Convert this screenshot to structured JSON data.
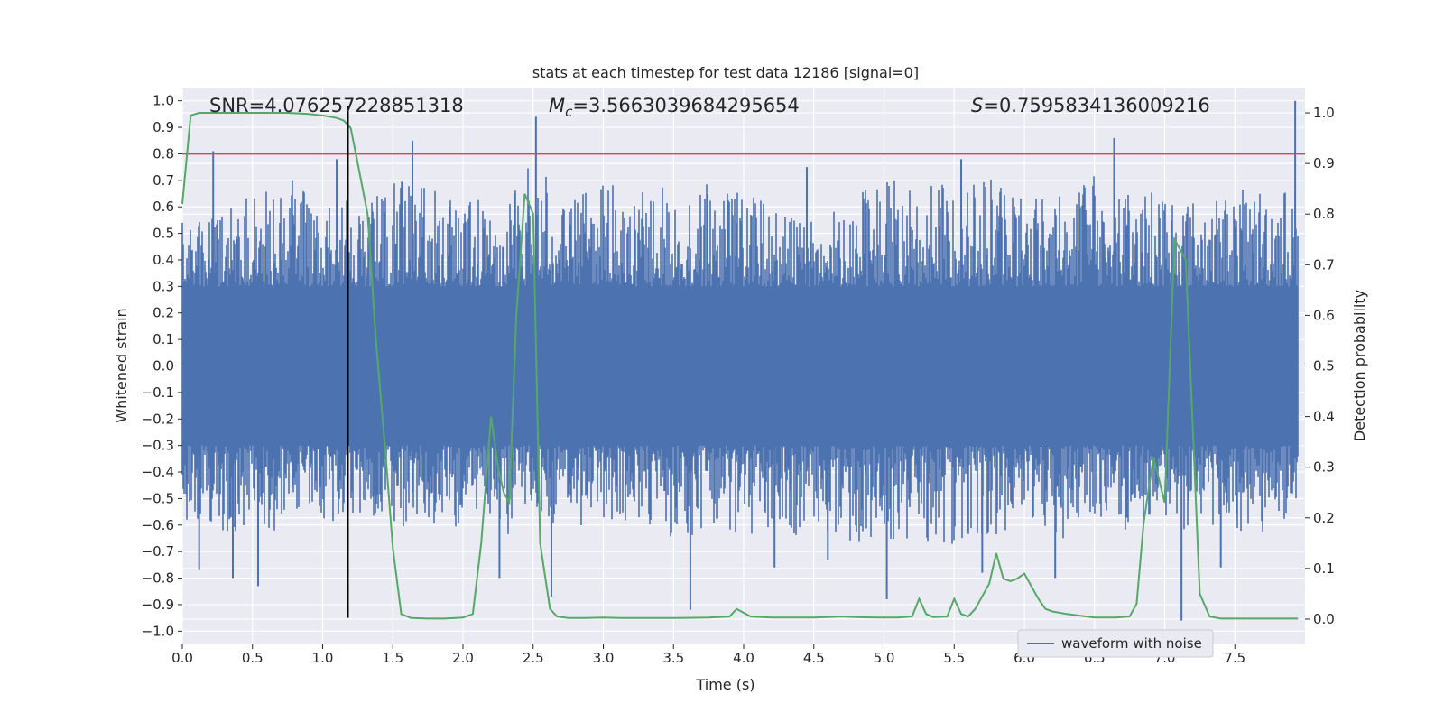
{
  "chart_data": {
    "type": "line",
    "title": "stats at each timestep for test data 12186 [signal=0]",
    "xlabel": "Time (s)",
    "ylabel_left": "Whitened strain",
    "ylabel_right": "Detection probability",
    "xlim": [
      0.0,
      8.0
    ],
    "ylim_left": [
      -1.05,
      1.05
    ],
    "ylim_right": [
      -0.05,
      1.05
    ],
    "x_ticks": [
      0.0,
      0.5,
      1.0,
      1.5,
      2.0,
      2.5,
      3.0,
      3.5,
      4.0,
      4.5,
      5.0,
      5.5,
      6.0,
      6.5,
      7.0,
      7.5
    ],
    "x_tick_labels": [
      "0.0",
      "0.5",
      "1.0",
      "1.5",
      "2.0",
      "2.5",
      "3.0",
      "3.5",
      "4.0",
      "4.5",
      "5.0",
      "5.5",
      "6.0",
      "6.5",
      "7.0",
      "7.5"
    ],
    "y_left_ticks": [
      1.0,
      0.9,
      0.8,
      0.7,
      0.6,
      0.5,
      0.4,
      0.3,
      0.2,
      0.1,
      0.0,
      -0.1,
      -0.2,
      -0.3,
      -0.4,
      -0.5,
      -0.6,
      -0.7,
      -0.8,
      -0.9,
      -1.0
    ],
    "y_left_tick_labels": [
      "1.0",
      "0.9",
      "0.8",
      "0.7",
      "0.6",
      "0.5",
      "0.4",
      "0.3",
      "0.2",
      "0.1",
      "0.0",
      "−0.1",
      "−0.2",
      "−0.3",
      "−0.4",
      "−0.5",
      "−0.6",
      "−0.7",
      "−0.8",
      "−0.9",
      "−1.0"
    ],
    "y_right_ticks": [
      1.0,
      0.9,
      0.8,
      0.7,
      0.6,
      0.5,
      0.4,
      0.3,
      0.2,
      0.1,
      0.0
    ],
    "y_right_tick_labels": [
      "1.0",
      "0.9",
      "0.8",
      "0.7",
      "0.6",
      "0.5",
      "0.4",
      "0.3",
      "0.2",
      "0.1",
      "0.0"
    ],
    "grid": true,
    "legend_position": "lower-right",
    "annotations": {
      "snr": "SNR=4.076257228851318",
      "mc_symbol": "M",
      "mc_subscript": "c",
      "mc_value": "=3.5663039684295654",
      "s_symbol": "S",
      "s_value": "=0.7595834136009216"
    },
    "threshold_line": {
      "y": 0.8,
      "color": "#c44e52"
    },
    "event_marker": {
      "x": 1.18,
      "y_range": [
        -0.95,
        0.98
      ],
      "color": "#000000"
    },
    "series": [
      {
        "name": "waveform with noise",
        "axis": "left",
        "color": "#4c72b0",
        "envelope": {
          "x": [
            0.0,
            0.25,
            0.5,
            0.75,
            1.0,
            1.25,
            1.5,
            1.75,
            2.0,
            2.25,
            2.5,
            2.75,
            3.0,
            3.25,
            3.5,
            3.75,
            4.0,
            4.25,
            4.5,
            4.75,
            5.0,
            5.25,
            5.5,
            5.75,
            6.0,
            6.25,
            6.5,
            6.75,
            7.0,
            7.25,
            7.5,
            7.75,
            7.95
          ],
          "upper": [
            0.56,
            0.58,
            0.66,
            0.72,
            0.62,
            0.65,
            0.7,
            0.68,
            0.61,
            0.66,
            0.78,
            0.63,
            0.7,
            0.66,
            0.68,
            0.7,
            0.66,
            0.6,
            0.55,
            0.64,
            0.72,
            0.7,
            0.68,
            0.74,
            0.66,
            0.69,
            0.72,
            0.66,
            0.7,
            0.62,
            0.66,
            0.7,
            0.68
          ],
          "lower": [
            -0.6,
            -0.62,
            -0.66,
            -0.6,
            -0.58,
            -0.62,
            -0.66,
            -0.6,
            -0.62,
            -0.65,
            -0.6,
            -0.62,
            -0.64,
            -0.58,
            -0.66,
            -0.62,
            -0.64,
            -0.66,
            -0.62,
            -0.66,
            -0.7,
            -0.66,
            -0.68,
            -0.64,
            -0.62,
            -0.66,
            -0.6,
            -0.62,
            -0.66,
            -0.6,
            -0.62,
            -0.64,
            -0.6
          ]
        },
        "spikes": [
          {
            "x": 0.22,
            "y": 0.81
          },
          {
            "x": 1.64,
            "y": 0.85
          },
          {
            "x": 2.52,
            "y": 0.94
          },
          {
            "x": 6.64,
            "y": 0.86
          },
          {
            "x": 7.93,
            "y": 1.0
          },
          {
            "x": 0.12,
            "y": -0.77
          },
          {
            "x": 0.36,
            "y": -0.8
          },
          {
            "x": 0.54,
            "y": -0.83
          },
          {
            "x": 2.26,
            "y": -0.8
          },
          {
            "x": 2.63,
            "y": -0.87
          },
          {
            "x": 3.62,
            "y": -0.92
          },
          {
            "x": 4.22,
            "y": -0.76
          },
          {
            "x": 4.6,
            "y": -0.73
          },
          {
            "x": 5.02,
            "y": -0.88
          },
          {
            "x": 5.7,
            "y": -0.78
          },
          {
            "x": 6.22,
            "y": -0.8
          },
          {
            "x": 7.12,
            "y": -0.96
          },
          {
            "x": 7.4,
            "y": -0.76
          },
          {
            "x": 1.1,
            "y": 0.78
          },
          {
            "x": 5.55,
            "y": 0.78
          },
          {
            "x": 4.45,
            "y": 0.75
          }
        ]
      },
      {
        "name": "Detection probability",
        "axis": "right",
        "color": "#55a868",
        "x": [
          0.0,
          0.06,
          0.12,
          0.25,
          0.5,
          0.75,
          0.9,
          1.0,
          1.1,
          1.15,
          1.2,
          1.25,
          1.32,
          1.38,
          1.45,
          1.5,
          1.56,
          1.63,
          1.75,
          1.87,
          2.0,
          2.07,
          2.13,
          2.2,
          2.25,
          2.29,
          2.33,
          2.38,
          2.44,
          2.5,
          2.55,
          2.62,
          2.67,
          2.75,
          2.87,
          3.0,
          3.12,
          3.25,
          3.5,
          3.75,
          3.9,
          3.95,
          4.05,
          4.2,
          4.5,
          4.7,
          4.8,
          4.95,
          5.1,
          5.2,
          5.25,
          5.3,
          5.35,
          5.45,
          5.5,
          5.55,
          5.6,
          5.65,
          5.75,
          5.8,
          5.85,
          5.9,
          5.95,
          6.0,
          6.1,
          6.15,
          6.2,
          6.3,
          6.5,
          6.65,
          6.75,
          6.8,
          6.85,
          6.92,
          7.0,
          7.07,
          7.15,
          7.25,
          7.32,
          7.4,
          7.6,
          7.8,
          7.95
        ],
        "y": [
          0.82,
          0.995,
          1.0,
          1.0,
          1.0,
          1.0,
          0.998,
          0.995,
          0.99,
          0.985,
          0.97,
          0.9,
          0.8,
          0.55,
          0.32,
          0.14,
          0.01,
          0.002,
          0.001,
          0.001,
          0.003,
          0.01,
          0.15,
          0.4,
          0.3,
          0.25,
          0.23,
          0.6,
          0.84,
          0.8,
          0.15,
          0.02,
          0.005,
          0.002,
          0.002,
          0.003,
          0.002,
          0.002,
          0.002,
          0.003,
          0.005,
          0.02,
          0.005,
          0.003,
          0.003,
          0.005,
          0.004,
          0.003,
          0.003,
          0.005,
          0.04,
          0.01,
          0.004,
          0.005,
          0.04,
          0.01,
          0.005,
          0.02,
          0.07,
          0.13,
          0.08,
          0.075,
          0.08,
          0.09,
          0.04,
          0.02,
          0.015,
          0.01,
          0.003,
          0.003,
          0.005,
          0.03,
          0.19,
          0.32,
          0.23,
          0.75,
          0.71,
          0.05,
          0.005,
          0.001,
          0.001,
          0.001,
          0.001
        ]
      }
    ]
  }
}
